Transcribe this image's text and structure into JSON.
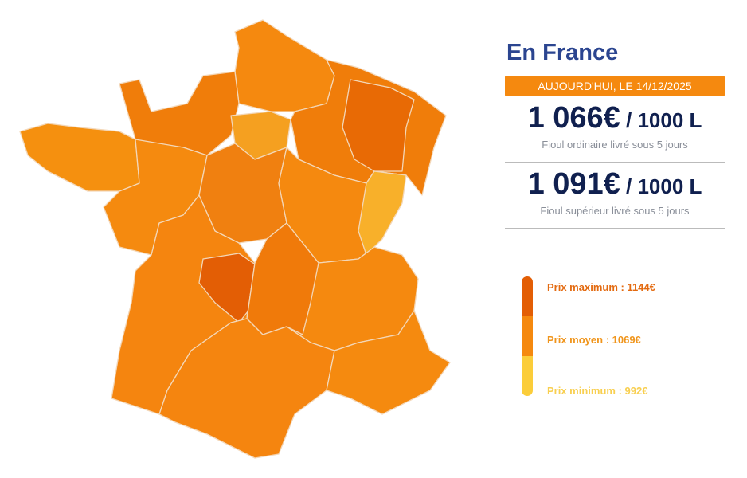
{
  "header": {
    "title": "En France",
    "date": "AUJOURD'HUI, LE 14/12/2025"
  },
  "prices": [
    {
      "value": "1 066€",
      "unit": " / 1000 L",
      "label": "Fioul ordinaire livré sous 5 jours"
    },
    {
      "value": "1 091€",
      "unit": " / 1000 L",
      "label": "Fioul supérieur livré sous 5 jours"
    }
  ],
  "legend": {
    "max": {
      "label": "Prix maximum : 1144€",
      "color": "#e35e05"
    },
    "avg": {
      "label": "Prix moyen : 1069€",
      "color": "#f5890f"
    },
    "min": {
      "label": "Prix minimum : 992€",
      "color": "#fbcd3a"
    }
  },
  "colors": {
    "accent": "#f5890f",
    "title": "#2b4590"
  }
}
